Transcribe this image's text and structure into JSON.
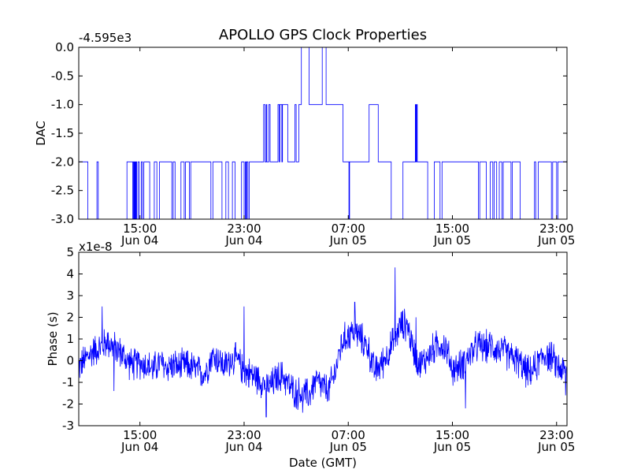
{
  "title": "APOLLO GPS Clock Properties",
  "colors": {
    "line": "#0000ff",
    "axis": "#000000",
    "background": "#ffffff"
  },
  "chart_data": [
    {
      "type": "line",
      "panel": "top",
      "ylabel": "DAC",
      "offset_label": "-4.595e3",
      "ylim": [
        -3.0,
        0.0
      ],
      "yticks": [
        0.0,
        -0.5,
        -1.0,
        -1.5,
        -2.0,
        -2.5,
        -3.0
      ],
      "ytick_labels": [
        "0.0",
        "-0.5",
        "-1.0",
        "-1.5",
        "-2.0",
        "-2.5",
        "-3.0"
      ],
      "xlim_hours": [
        10.3,
        47.8
      ],
      "xtick_hours": [
        15,
        23,
        31,
        39,
        47
      ],
      "xtick_labels": [
        [
          "15:00",
          "Jun 04"
        ],
        [
          "23:00",
          "Jun 04"
        ],
        [
          "07:00",
          "Jun 05"
        ],
        [
          "15:00",
          "Jun 05"
        ],
        [
          "23:00",
          "Jun 05"
        ]
      ],
      "grid": false,
      "legend": "none",
      "series": [
        {
          "segments": [
            [
              10.3,
              -2
            ],
            [
              11.0,
              -3
            ],
            [
              11.7,
              -2
            ],
            [
              11.8,
              -3
            ],
            [
              14.0,
              -3
            ],
            [
              14.0,
              -2
            ],
            [
              14.4,
              -2
            ],
            [
              14.45,
              -3
            ],
            [
              14.5,
              -2
            ],
            [
              14.55,
              -3
            ],
            [
              14.6,
              -2
            ],
            [
              14.65,
              -3
            ],
            [
              14.7,
              -2
            ],
            [
              14.75,
              -3
            ],
            [
              14.85,
              -2
            ],
            [
              14.95,
              -3
            ],
            [
              15.1,
              -2
            ],
            [
              15.2,
              -3
            ],
            [
              15.3,
              -2
            ],
            [
              15.7,
              -2
            ],
            [
              15.75,
              -3
            ],
            [
              16.0,
              -3
            ],
            [
              16.1,
              -2
            ],
            [
              16.3,
              -3
            ],
            [
              16.5,
              -2
            ],
            [
              17.4,
              -2
            ],
            [
              17.45,
              -3
            ],
            [
              17.55,
              -2
            ],
            [
              17.7,
              -3
            ],
            [
              18.1,
              -3
            ],
            [
              18.15,
              -2
            ],
            [
              18.4,
              -3
            ],
            [
              18.5,
              -2
            ],
            [
              18.8,
              -3
            ],
            [
              18.9,
              -2
            ],
            [
              20.4,
              -2
            ],
            [
              20.45,
              -3
            ],
            [
              20.6,
              -2
            ],
            [
              21.2,
              -2
            ],
            [
              21.3,
              -3
            ],
            [
              21.6,
              -2
            ],
            [
              21.8,
              -3
            ],
            [
              22.1,
              -2
            ],
            [
              22.3,
              -3
            ],
            [
              22.7,
              -3
            ],
            [
              22.8,
              -2
            ],
            [
              23.0,
              -3
            ],
            [
              23.1,
              -2
            ],
            [
              23.15,
              -3
            ],
            [
              23.2,
              -2
            ],
            [
              23.3,
              -3
            ],
            [
              23.4,
              -2
            ],
            [
              24.4,
              -2
            ],
            [
              24.5,
              -1
            ],
            [
              24.6,
              -2
            ],
            [
              24.7,
              -1
            ],
            [
              24.75,
              -2
            ],
            [
              24.9,
              -1
            ],
            [
              25.0,
              -2
            ],
            [
              25.5,
              -2
            ],
            [
              25.6,
              -1
            ],
            [
              25.7,
              -2
            ],
            [
              25.75,
              -1
            ],
            [
              25.9,
              -2
            ],
            [
              25.95,
              -1
            ],
            [
              26.3,
              -1
            ],
            [
              26.35,
              -2
            ],
            [
              26.9,
              -1
            ],
            [
              27.0,
              -2
            ],
            [
              27.2,
              -1
            ],
            [
              27.4,
              0
            ],
            [
              27.9,
              0
            ],
            [
              28.0,
              -1
            ],
            [
              28.9,
              -1
            ],
            [
              29.0,
              0
            ],
            [
              29.2,
              0
            ],
            [
              29.3,
              -1
            ],
            [
              30.5,
              -1
            ],
            [
              30.6,
              -2
            ],
            [
              31.0,
              -2
            ],
            [
              31.05,
              -3
            ],
            [
              31.1,
              -2
            ],
            [
              32.5,
              -2
            ],
            [
              32.6,
              -1
            ],
            [
              33.2,
              -1
            ],
            [
              33.3,
              -2
            ],
            [
              34.2,
              -2
            ],
            [
              34.3,
              -3
            ],
            [
              35.1,
              -3
            ],
            [
              35.2,
              -2
            ],
            [
              36.1,
              -2
            ],
            [
              36.15,
              -1
            ],
            [
              36.2,
              -2
            ],
            [
              36.25,
              -1
            ],
            [
              36.3,
              -2
            ],
            [
              37.0,
              -2
            ],
            [
              37.1,
              -3
            ],
            [
              37.5,
              -3
            ],
            [
              37.6,
              -2
            ],
            [
              38.0,
              -2
            ],
            [
              38.05,
              -3
            ],
            [
              38.2,
              -2
            ],
            [
              40.9,
              -2
            ],
            [
              41.0,
              -3
            ],
            [
              41.1,
              -2
            ],
            [
              41.5,
              -2
            ],
            [
              41.6,
              -3
            ],
            [
              41.9,
              -2
            ],
            [
              42.1,
              -3
            ],
            [
              42.2,
              -2
            ],
            [
              42.4,
              -3
            ],
            [
              42.6,
              -2
            ],
            [
              42.8,
              -3
            ],
            [
              42.9,
              -2
            ],
            [
              43.4,
              -2
            ],
            [
              43.5,
              -3
            ],
            [
              43.6,
              -2
            ],
            [
              44.1,
              -2
            ],
            [
              44.2,
              -3
            ],
            [
              45.2,
              -3
            ],
            [
              45.3,
              -2
            ],
            [
              45.4,
              -3
            ],
            [
              45.6,
              -2
            ],
            [
              46.5,
              -2
            ],
            [
              46.6,
              -3
            ],
            [
              46.7,
              -2
            ],
            [
              46.9,
              -2
            ],
            [
              47.0,
              -3
            ],
            [
              47.1,
              -2
            ],
            [
              47.8,
              -2
            ]
          ]
        }
      ]
    },
    {
      "type": "line",
      "panel": "bottom",
      "ylabel": "Phase (s)",
      "xlabel": "Date (GMT)",
      "offset_label": "x1e-8",
      "ylim": [
        -3,
        5
      ],
      "yticks": [
        5,
        4,
        3,
        2,
        1,
        0,
        -1,
        -2,
        -3
      ],
      "ytick_labels": [
        "5",
        "4",
        "3",
        "2",
        "1",
        "0",
        "-1",
        "-2",
        "-3"
      ],
      "xlim_hours": [
        10.3,
        47.8
      ],
      "xtick_hours": [
        15,
        23,
        31,
        39,
        47
      ],
      "xtick_labels": [
        [
          "15:00",
          "Jun 04"
        ],
        [
          "23:00",
          "Jun 04"
        ],
        [
          "07:00",
          "Jun 05"
        ],
        [
          "15:00",
          "Jun 05"
        ],
        [
          "23:00",
          "Jun 05"
        ]
      ],
      "grid": false,
      "legend": "none",
      "series": [
        {
          "trend_points": [
            [
              10.3,
              -0.3
            ],
            [
              11.0,
              0.2
            ],
            [
              11.5,
              0.5
            ],
            [
              12.0,
              0.6
            ],
            [
              12.5,
              0.9
            ],
            [
              13.0,
              0.6
            ],
            [
              13.5,
              0.4
            ],
            [
              14.0,
              0.0
            ],
            [
              14.5,
              -0.2
            ],
            [
              15.0,
              -0.1
            ],
            [
              15.5,
              -0.2
            ],
            [
              16.0,
              -0.4
            ],
            [
              16.5,
              -0.1
            ],
            [
              17.0,
              -0.3
            ],
            [
              17.5,
              -0.2
            ],
            [
              18.0,
              -0.3
            ],
            [
              18.5,
              -0.2
            ],
            [
              19.0,
              -0.3
            ],
            [
              19.5,
              -0.5
            ],
            [
              20.0,
              -0.6
            ],
            [
              20.5,
              0.2
            ],
            [
              21.0,
              0.1
            ],
            [
              21.5,
              -0.3
            ],
            [
              22.0,
              0.1
            ],
            [
              22.5,
              0.0
            ],
            [
              23.0,
              -0.5
            ],
            [
              23.5,
              -0.6
            ],
            [
              24.0,
              -0.8
            ],
            [
              24.5,
              -1.0
            ],
            [
              25.0,
              -1.2
            ],
            [
              25.5,
              -0.8
            ],
            [
              26.0,
              -0.7
            ],
            [
              26.5,
              -1.2
            ],
            [
              27.0,
              -1.5
            ],
            [
              27.5,
              -1.5
            ],
            [
              28.0,
              -1.6
            ],
            [
              28.5,
              -0.9
            ],
            [
              29.0,
              -1.2
            ],
            [
              29.5,
              -1.4
            ],
            [
              30.0,
              -0.5
            ],
            [
              30.5,
              0.8
            ],
            [
              31.0,
              1.2
            ],
            [
              31.5,
              1.4
            ],
            [
              32.0,
              1.0
            ],
            [
              32.5,
              0.6
            ],
            [
              33.0,
              -0.5
            ],
            [
              33.5,
              -0.2
            ],
            [
              34.0,
              0.3
            ],
            [
              34.5,
              0.9
            ],
            [
              35.0,
              1.6
            ],
            [
              35.5,
              1.7
            ],
            [
              36.0,
              0.5
            ],
            [
              36.5,
              -0.2
            ],
            [
              37.0,
              0.1
            ],
            [
              37.5,
              0.5
            ],
            [
              38.0,
              0.8
            ],
            [
              38.5,
              0.6
            ],
            [
              39.0,
              -0.4
            ],
            [
              39.5,
              -0.3
            ],
            [
              40.0,
              0.0
            ],
            [
              40.5,
              0.4
            ],
            [
              41.0,
              0.7
            ],
            [
              41.5,
              0.6
            ],
            [
              42.0,
              0.7
            ],
            [
              42.5,
              0.5
            ],
            [
              43.0,
              0.4
            ],
            [
              43.5,
              0.2
            ],
            [
              44.0,
              0.0
            ],
            [
              44.5,
              -0.4
            ],
            [
              45.0,
              -0.6
            ],
            [
              45.5,
              -0.2
            ],
            [
              46.0,
              0.3
            ],
            [
              46.5,
              0.2
            ],
            [
              47.0,
              -0.2
            ],
            [
              47.8,
              -0.6
            ]
          ],
          "spikes": [
            [
              12.1,
              2.5
            ],
            [
              23.0,
              2.5
            ],
            [
              31.5,
              2.7
            ],
            [
              34.6,
              4.3
            ],
            [
              36.2,
              2.0
            ],
            [
              13.0,
              -1.4
            ],
            [
              24.7,
              -2.6
            ],
            [
              27.5,
              -2.4
            ],
            [
              40.0,
              -2.2
            ],
            [
              47.7,
              -1.6
            ]
          ],
          "noise_amplitude": 0.9
        }
      ]
    }
  ]
}
